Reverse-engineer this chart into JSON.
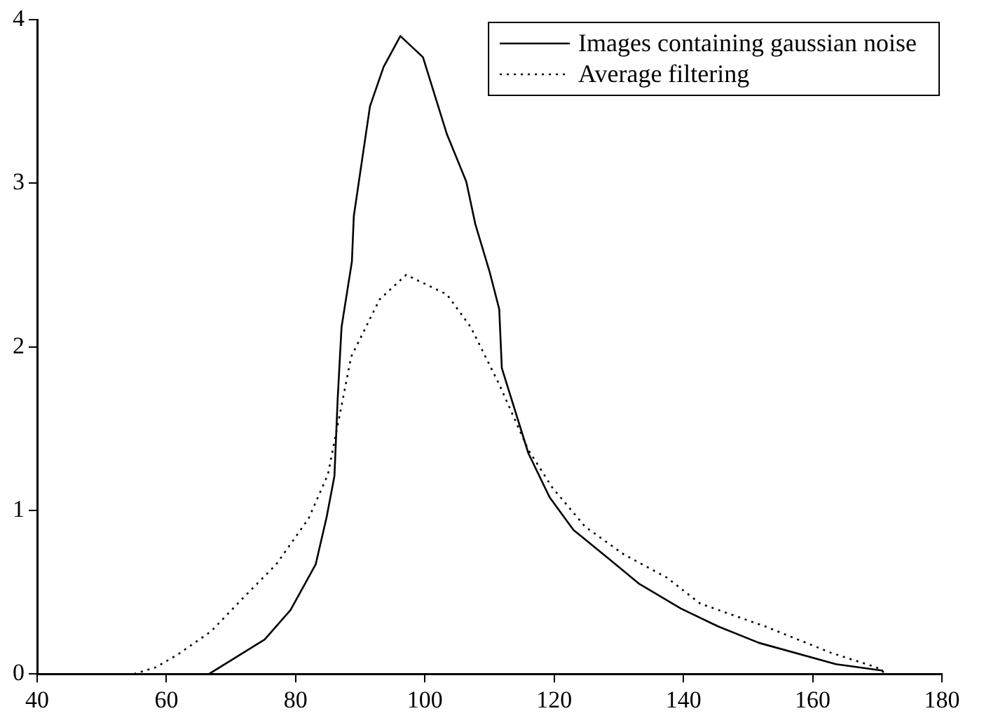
{
  "chart_data": {
    "type": "line",
    "xlim": [
      40,
      180
    ],
    "xticks": [
      40,
      60,
      80,
      100,
      120,
      140,
      160,
      180
    ],
    "ylim": [
      0,
      4
    ],
    "yticks": [
      0,
      1,
      2,
      3,
      4
    ],
    "grid": false,
    "legend": "top right",
    "marker": "none",
    "series": [
      {
        "name": "Images containing gaussian noise",
        "color": "#000000",
        "line_style": "solid",
        "x": [
          66.6,
          75.2,
          79.2,
          83.1,
          84.8,
          86.0,
          86.5,
          87.1,
          88.7,
          89.0,
          91.5,
          93.6,
          96.2,
          99.7,
          103.4,
          106.4,
          107.8,
          110.0,
          111.5,
          111.9,
          116.0,
          119.3,
          123.0,
          128.6,
          133.2,
          139.6,
          145.4,
          151.7,
          163.6,
          170.9
        ],
        "values": [
          0,
          0.21,
          0.39,
          0.67,
          0.96,
          1.21,
          1.68,
          2.12,
          2.52,
          2.8,
          3.47,
          3.71,
          3.9,
          3.77,
          3.3,
          3.01,
          2.75,
          2.46,
          2.23,
          1.87,
          1.35,
          1.08,
          0.88,
          0.7,
          0.55,
          0.4,
          0.29,
          0.19,
          0.06,
          0.02
        ]
      },
      {
        "name": "Average filtering",
        "color": "#000000",
        "line_style": "dotted",
        "x": [
          55.0,
          58.3,
          61.8,
          66.9,
          72.0,
          77.0,
          82.0,
          85.0,
          88.6,
          93.0,
          97.1,
          103.4,
          107.1,
          111.5,
          116.0,
          119.7,
          124.8,
          130.8,
          137.4,
          142.6,
          152.7,
          162.8,
          169.9,
          171.0
        ],
        "values": [
          0,
          0.04,
          0.12,
          0.26,
          0.47,
          0.67,
          0.95,
          1.22,
          1.94,
          2.29,
          2.44,
          2.32,
          2.12,
          1.77,
          1.37,
          1.14,
          0.9,
          0.73,
          0.59,
          0.43,
          0.29,
          0.13,
          0.04,
          0.01
        ]
      }
    ]
  }
}
